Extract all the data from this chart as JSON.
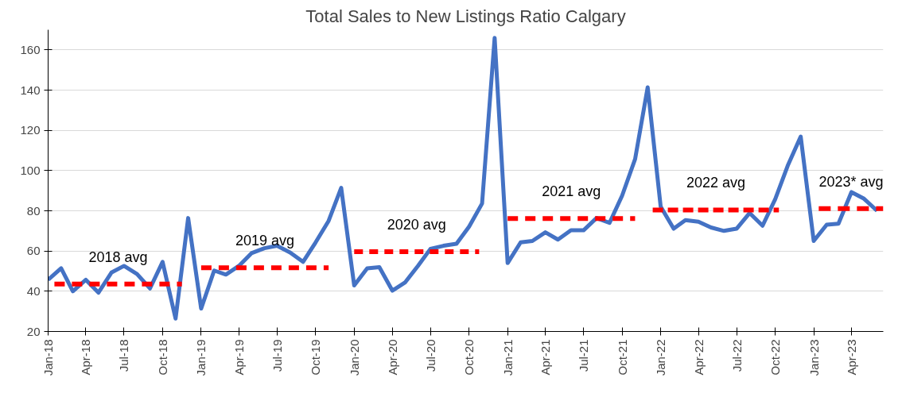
{
  "chart_data": {
    "type": "line",
    "title": "Total Sales to New Listings Ratio Calgary",
    "xlim": [
      "2018-01-01",
      "2023-06-16"
    ],
    "ylim": [
      20,
      170
    ],
    "xticks": [
      {
        "value": "2018-01",
        "label": "Jan-18"
      },
      {
        "value": "2018-04",
        "label": "Apr-18"
      },
      {
        "value": "2018-07",
        "label": "Jul-18"
      },
      {
        "value": "2018-10",
        "label": "Oct-18"
      },
      {
        "value": "2019-01",
        "label": "Jan-19"
      },
      {
        "value": "2019-04",
        "label": "Apr-19"
      },
      {
        "value": "2019-07",
        "label": "Jul-19"
      },
      {
        "value": "2019-10",
        "label": "Oct-19"
      },
      {
        "value": "2020-01",
        "label": "Jan-20"
      },
      {
        "value": "2020-04",
        "label": "Apr-20"
      },
      {
        "value": "2020-07",
        "label": "Jul-20"
      },
      {
        "value": "2020-10",
        "label": "Oct-20"
      },
      {
        "value": "2021-01",
        "label": "Jan-21"
      },
      {
        "value": "2021-04",
        "label": "Apr-21"
      },
      {
        "value": "2021-07",
        "label": "Jul-21"
      },
      {
        "value": "2021-10",
        "label": "Oct-21"
      },
      {
        "value": "2022-01",
        "label": "Jan-22"
      },
      {
        "value": "2022-04",
        "label": "Apr-22"
      },
      {
        "value": "2022-07",
        "label": "Jul-22"
      },
      {
        "value": "2022-10",
        "label": "Oct-22"
      },
      {
        "value": "2023-01",
        "label": "Jan-23"
      },
      {
        "value": "2023-04",
        "label": "Apr-23"
      }
    ],
    "yticks": [
      20,
      40,
      60,
      80,
      100,
      120,
      140,
      160
    ],
    "grid": "y",
    "marker": "none",
    "series": [
      {
        "color": "#4472c4",
        "line_style": "solid",
        "x": [
          "2018-01",
          "2018-02",
          "2018-03",
          "2018-04",
          "2018-05",
          "2018-06",
          "2018-07",
          "2018-08",
          "2018-09",
          "2018-10",
          "2018-11",
          "2018-12",
          "2019-01",
          "2019-02",
          "2019-03",
          "2019-04",
          "2019-05",
          "2019-06",
          "2019-07",
          "2019-08",
          "2019-09",
          "2019-10",
          "2019-11",
          "2019-12",
          "2020-01",
          "2020-02",
          "2020-03",
          "2020-04",
          "2020-05",
          "2020-06",
          "2020-07",
          "2020-08",
          "2020-09",
          "2020-10",
          "2020-11",
          "2020-12",
          "2021-01",
          "2021-02",
          "2021-03",
          "2021-04",
          "2021-05",
          "2021-06",
          "2021-07",
          "2021-08",
          "2021-09",
          "2021-10",
          "2021-11",
          "2021-12",
          "2022-01",
          "2022-02",
          "2022-03",
          "2022-04",
          "2022-05",
          "2022-06",
          "2022-07",
          "2022-08",
          "2022-09",
          "2022-10",
          "2022-11",
          "2022-12",
          "2023-01",
          "2023-02",
          "2023-03",
          "2023-04",
          "2023-05",
          "2023-06"
        ],
        "values": [
          45.7,
          51.4,
          40,
          45.7,
          39.3,
          49.3,
          52.6,
          48.6,
          41.4,
          54.6,
          26.4,
          76.4,
          31.4,
          50.3,
          48.3,
          52.6,
          58.9,
          61.4,
          62.6,
          59.3,
          54.6,
          64.3,
          75,
          91.4,
          42.9,
          51.4,
          52,
          40.3,
          44.3,
          52.6,
          61.1,
          62.6,
          63.6,
          72.1,
          83.6,
          166,
          54,
          64.3,
          65,
          69.3,
          65.7,
          70.3,
          70.3,
          76.4,
          74,
          87.5,
          105.7,
          141.4,
          82.1,
          71.1,
          75.4,
          74.6,
          71.7,
          70,
          71.1,
          78.9,
          72.6,
          85.7,
          102.9,
          116.9,
          65,
          73.1,
          73.6,
          89.3,
          86,
          80
        ]
      },
      {
        "type": "line",
        "name": "2018 avg",
        "color": "#ff0000",
        "line_style": "dashed",
        "x": [
          "2018-01-16",
          "2018-11-16"
        ],
        "values": [
          43.6,
          43.6
        ]
      },
      {
        "type": "line",
        "name": "2019 avg",
        "color": "#ff0000",
        "line_style": "dashed",
        "x": [
          "2019-01-01",
          "2019-11-01"
        ],
        "values": [
          51.7,
          51.7
        ]
      },
      {
        "type": "line",
        "name": "2020 avg",
        "color": "#ff0000",
        "line_style": "dashed",
        "x": [
          "2020-01-01",
          "2020-10-25"
        ],
        "values": [
          59.7,
          59.7
        ]
      },
      {
        "type": "line",
        "name": "2021 avg",
        "color": "#ff0000",
        "line_style": "dashed",
        "x": [
          "2021-01-01",
          "2021-11-01"
        ],
        "values": [
          76.2,
          76.2
        ]
      },
      {
        "type": "line",
        "name": "2022 avg",
        "color": "#ff0000",
        "line_style": "dashed",
        "x": [
          "2021-12-13",
          "2022-10-10"
        ],
        "values": [
          80.4,
          80.4
        ]
      },
      {
        "type": "line",
        "name": "2023* avg",
        "color": "#ff0000",
        "line_style": "dashed",
        "x": [
          "2023-01-13",
          "2023-06-16"
        ],
        "values": [
          81.1,
          81.1
        ]
      }
    ]
  }
}
